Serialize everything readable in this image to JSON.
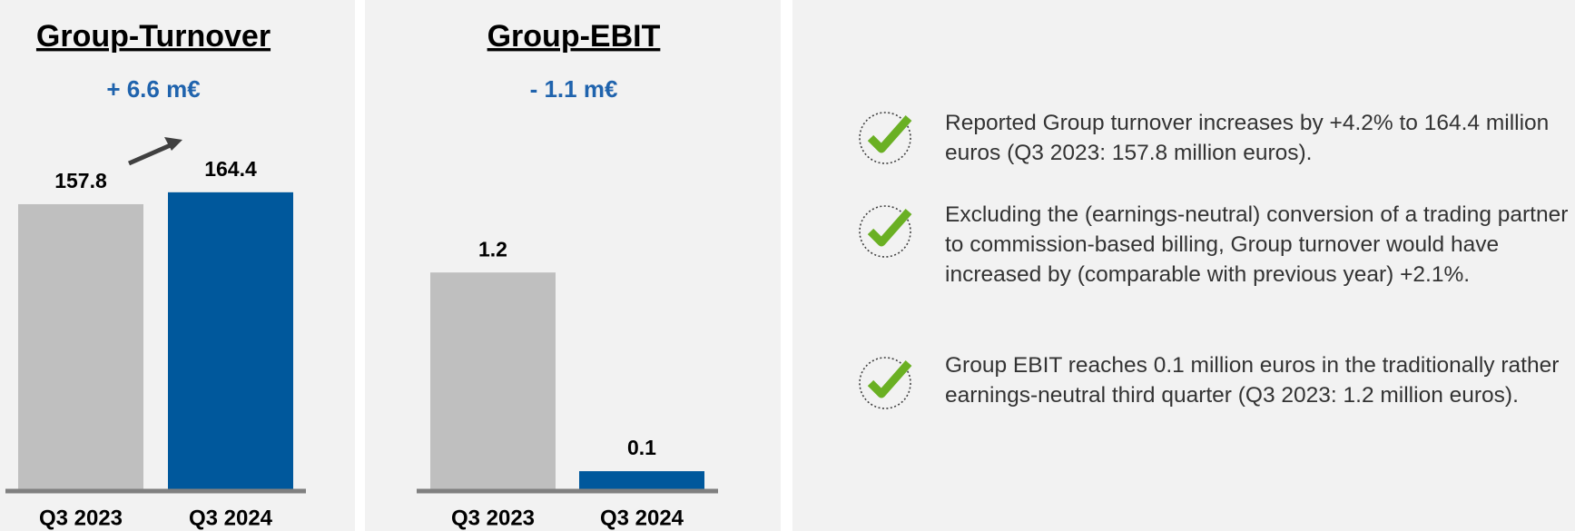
{
  "chart_data": [
    {
      "type": "bar",
      "title": "Group-Turnover",
      "subtitle": "+ 6.6 m€",
      "categories": [
        "Q3 2023",
        "Q3 2024"
      ],
      "values": [
        157.8,
        164.4
      ],
      "colors": [
        "#bfbfbf",
        "#00589c"
      ],
      "ylim": [
        0,
        200
      ]
    },
    {
      "type": "bar",
      "title": "Group-EBIT",
      "subtitle": "- 1.1 m€",
      "categories": [
        "Q3 2023",
        "Q3 2024"
      ],
      "values": [
        1.2,
        0.1
      ],
      "colors": [
        "#bfbfbf",
        "#00589c"
      ],
      "ylim": [
        0,
        2
      ]
    }
  ],
  "bullets": [
    "Reported Group turnover increases by +4.2% to 164.4 million euros (Q3 2023: 157.8 million euros).",
    "Excluding the (earnings-neutral) conversion of a trading partner to commission-based billing, Group turnover would have increased by (comparable with previous year) +2.1%.",
    "Group EBIT reaches 0.1 million euros in the traditionally rather earnings-neutral third quarter (Q3 2023: 1.2 million euros)."
  ]
}
